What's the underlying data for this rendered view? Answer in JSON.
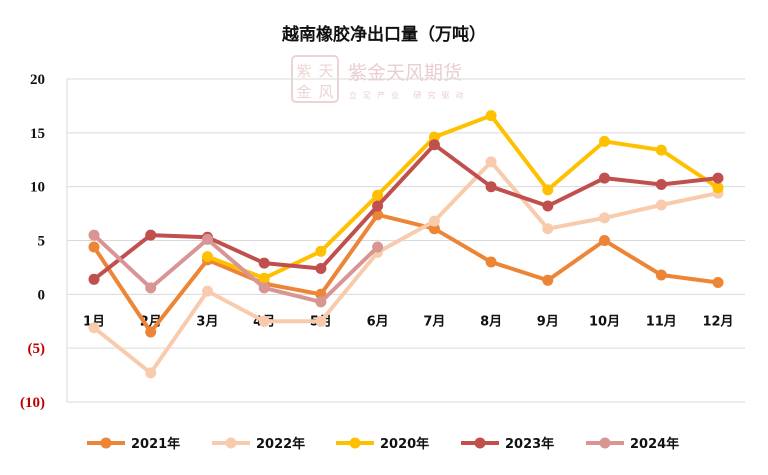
{
  "chart_data": {
    "type": "line",
    "title": "越南橡胶净出口量（万吨）",
    "categories": [
      "1月",
      "2月",
      "3月",
      "4月",
      "5月",
      "6月",
      "7月",
      "8月",
      "9月",
      "10月",
      "11月",
      "12月"
    ],
    "ylim": [
      -10,
      20
    ],
    "yticks": [
      20,
      15,
      10,
      5,
      0,
      -5,
      -10
    ],
    "ytick_labels": [
      "20",
      "15",
      "10",
      "5",
      "0",
      "(5)",
      "(10)"
    ],
    "grid": true,
    "legend_position": "bottom",
    "series": [
      {
        "name": "2021年",
        "color": "#ed8537",
        "values": [
          4.4,
          -3.5,
          3.2,
          1.0,
          0.0,
          7.4,
          6.1,
          3.0,
          1.3,
          5.0,
          1.8,
          1.1
        ]
      },
      {
        "name": "2022年",
        "color": "#f8cbad",
        "values": [
          -3.1,
          -7.3,
          0.3,
          -2.5,
          -2.5,
          3.9,
          6.8,
          12.3,
          6.1,
          7.1,
          8.3,
          9.4
        ]
      },
      {
        "name": "2020年",
        "color": "#ffc000",
        "values": [
          null,
          null,
          3.5,
          1.5,
          4.0,
          9.2,
          14.6,
          16.6,
          9.7,
          14.2,
          13.4,
          9.9
        ]
      },
      {
        "name": "2023年",
        "color": "#c0504d",
        "values": [
          1.4,
          5.5,
          5.3,
          2.9,
          2.4,
          8.2,
          13.9,
          10.0,
          8.2,
          10.8,
          10.2,
          10.8
        ]
      },
      {
        "name": "2024年",
        "color": "#d99594",
        "values": [
          5.5,
          0.6,
          5.1,
          0.6,
          -0.7,
          4.4,
          null,
          null,
          null,
          null,
          null,
          null
        ]
      }
    ]
  },
  "watermark": {
    "name": "紫金天风期货",
    "slogan": "立足产业 研究驱动",
    "seal_text": "紫天金风"
  }
}
